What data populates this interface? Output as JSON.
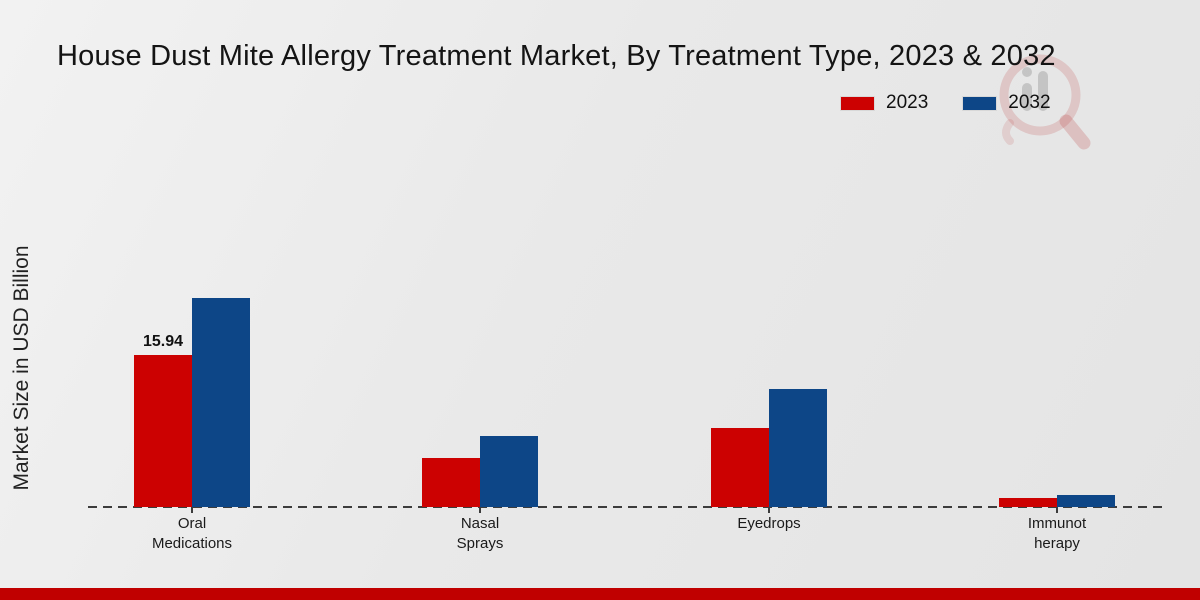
{
  "title": "House Dust Mite Allergy Treatment Market, By Treatment Type, 2023 & 2032",
  "y_axis_label": "Market Size in USD Billion",
  "legend": {
    "items": [
      {
        "label": "2023",
        "color": "#cc0101"
      },
      {
        "label": "2032",
        "color": "#0d4687"
      }
    ]
  },
  "watermark": {
    "icon": "magnifier-bars-logo"
  },
  "footer": {
    "bar_color": "#c00000"
  },
  "chart_data": {
    "type": "bar",
    "title": "House Dust Mite Allergy Treatment Market, By Treatment Type, 2023 & 2032",
    "categories": [
      "Oral Medications",
      "Nasal Sprays",
      "Eyedrops",
      "Immunotherapy"
    ],
    "category_label_lines": [
      [
        "Oral",
        "Medications"
      ],
      [
        "Nasal",
        "Sprays"
      ],
      [
        "Eyedrops"
      ],
      [
        "Immunot",
        "herapy"
      ]
    ],
    "series": [
      {
        "name": "2023",
        "color": "#cc0101",
        "values": [
          15.94,
          5.1,
          8.3,
          0.9
        ],
        "bar_labels": [
          "15.94",
          "",
          "",
          ""
        ]
      },
      {
        "name": "2032",
        "color": "#0d4687",
        "values": [
          21.9,
          7.4,
          12.4,
          1.25
        ],
        "bar_labels": [
          "",
          "",
          "",
          ""
        ]
      }
    ],
    "xlabel": "",
    "ylabel": "Market Size in USD Billion",
    "ylim": [
      0,
      22.5
    ],
    "grid": false,
    "legend_position": "top-right",
    "baseline_style": "dashed"
  }
}
